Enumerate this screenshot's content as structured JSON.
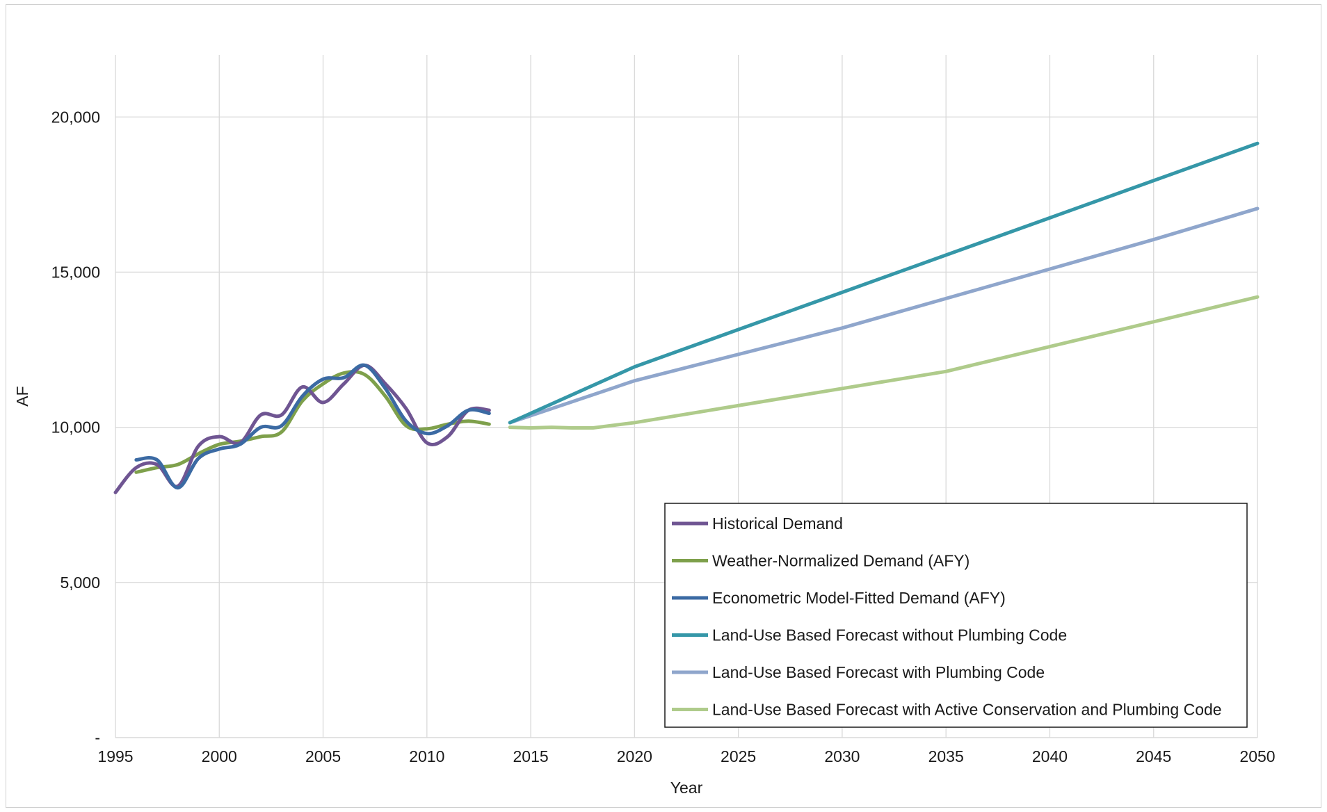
{
  "chart_data": {
    "type": "line",
    "title": "",
    "xlabel": "Year",
    "ylabel": "AF",
    "xlim": [
      1995,
      2050
    ],
    "ylim": [
      0,
      22000
    ],
    "x_ticks": [
      1995,
      2000,
      2005,
      2010,
      2015,
      2020,
      2025,
      2030,
      2035,
      2040,
      2045,
      2050
    ],
    "y_ticks": [
      {
        "value": 0,
        "label": "-"
      },
      {
        "value": 5000,
        "label": "5,000"
      },
      {
        "value": 10000,
        "label": "10,000"
      },
      {
        "value": 15000,
        "label": "15,000"
      },
      {
        "value": 20000,
        "label": "20,000"
      }
    ],
    "grid": true,
    "legend_position": "bottom-right",
    "series": [
      {
        "name": "Historical Demand",
        "color": "#6f5592",
        "smooth": true,
        "points": [
          [
            1995,
            7900
          ],
          [
            1996,
            8700
          ],
          [
            1997,
            8800
          ],
          [
            1998,
            8100
          ],
          [
            1999,
            9400
          ],
          [
            2000,
            9700
          ],
          [
            2001,
            9500
          ],
          [
            2002,
            10400
          ],
          [
            2003,
            10400
          ],
          [
            2004,
            11300
          ],
          [
            2005,
            10800
          ],
          [
            2006,
            11400
          ],
          [
            2007,
            12000
          ],
          [
            2008,
            11400
          ],
          [
            2009,
            10600
          ],
          [
            2010,
            9500
          ],
          [
            2011,
            9700
          ],
          [
            2012,
            10550
          ],
          [
            2013,
            10550
          ]
        ]
      },
      {
        "name": "Weather-Normalized Demand (AFY)",
        "color": "#7ea04b",
        "smooth": true,
        "points": [
          [
            1996,
            8550
          ],
          [
            1997,
            8700
          ],
          [
            1998,
            8800
          ],
          [
            1999,
            9150
          ],
          [
            2000,
            9450
          ],
          [
            2001,
            9550
          ],
          [
            2002,
            9700
          ],
          [
            2003,
            9850
          ],
          [
            2004,
            10850
          ],
          [
            2005,
            11400
          ],
          [
            2006,
            11750
          ],
          [
            2007,
            11700
          ],
          [
            2008,
            11000
          ],
          [
            2009,
            10050
          ],
          [
            2010,
            9950
          ],
          [
            2011,
            10100
          ],
          [
            2012,
            10200
          ],
          [
            2013,
            10100
          ]
        ]
      },
      {
        "name": "Econometric Model-Fitted Demand (AFY)",
        "color": "#3b6aa3",
        "smooth": true,
        "points": [
          [
            1996,
            8950
          ],
          [
            1997,
            8950
          ],
          [
            1998,
            8050
          ],
          [
            1999,
            9000
          ],
          [
            2000,
            9300
          ],
          [
            2001,
            9450
          ],
          [
            2002,
            10000
          ],
          [
            2003,
            10050
          ],
          [
            2004,
            11000
          ],
          [
            2005,
            11550
          ],
          [
            2006,
            11600
          ],
          [
            2007,
            12000
          ],
          [
            2008,
            11250
          ],
          [
            2009,
            10200
          ],
          [
            2010,
            9800
          ],
          [
            2011,
            10050
          ],
          [
            2012,
            10550
          ],
          [
            2013,
            10450
          ]
        ]
      },
      {
        "name": "Land-Use Based Forecast without Plumbing Code",
        "color": "#3597a8",
        "smooth": false,
        "points": [
          [
            2014,
            10150
          ],
          [
            2020,
            11950
          ],
          [
            2025,
            13150
          ],
          [
            2030,
            14350
          ],
          [
            2035,
            15550
          ],
          [
            2040,
            16750
          ],
          [
            2045,
            17950
          ],
          [
            2050,
            19150
          ]
        ]
      },
      {
        "name": "Land-Use Based Forecast with Plumbing Code",
        "color": "#8fa6cc",
        "smooth": false,
        "points": [
          [
            2014,
            10150
          ],
          [
            2020,
            11500
          ],
          [
            2025,
            12350
          ],
          [
            2030,
            13200
          ],
          [
            2035,
            14150
          ],
          [
            2040,
            15100
          ],
          [
            2045,
            16050
          ],
          [
            2050,
            17050
          ]
        ]
      },
      {
        "name": "Land-Use Based Forecast with Active Conservation and Plumbing Code",
        "color": "#afcb8b",
        "smooth": false,
        "points": [
          [
            2014,
            10000
          ],
          [
            2015,
            9980
          ],
          [
            2016,
            10000
          ],
          [
            2017,
            9980
          ],
          [
            2018,
            9980
          ],
          [
            2020,
            10150
          ],
          [
            2025,
            10700
          ],
          [
            2030,
            11250
          ],
          [
            2035,
            11800
          ],
          [
            2040,
            12600
          ],
          [
            2045,
            13400
          ],
          [
            2050,
            14200
          ]
        ]
      }
    ]
  }
}
